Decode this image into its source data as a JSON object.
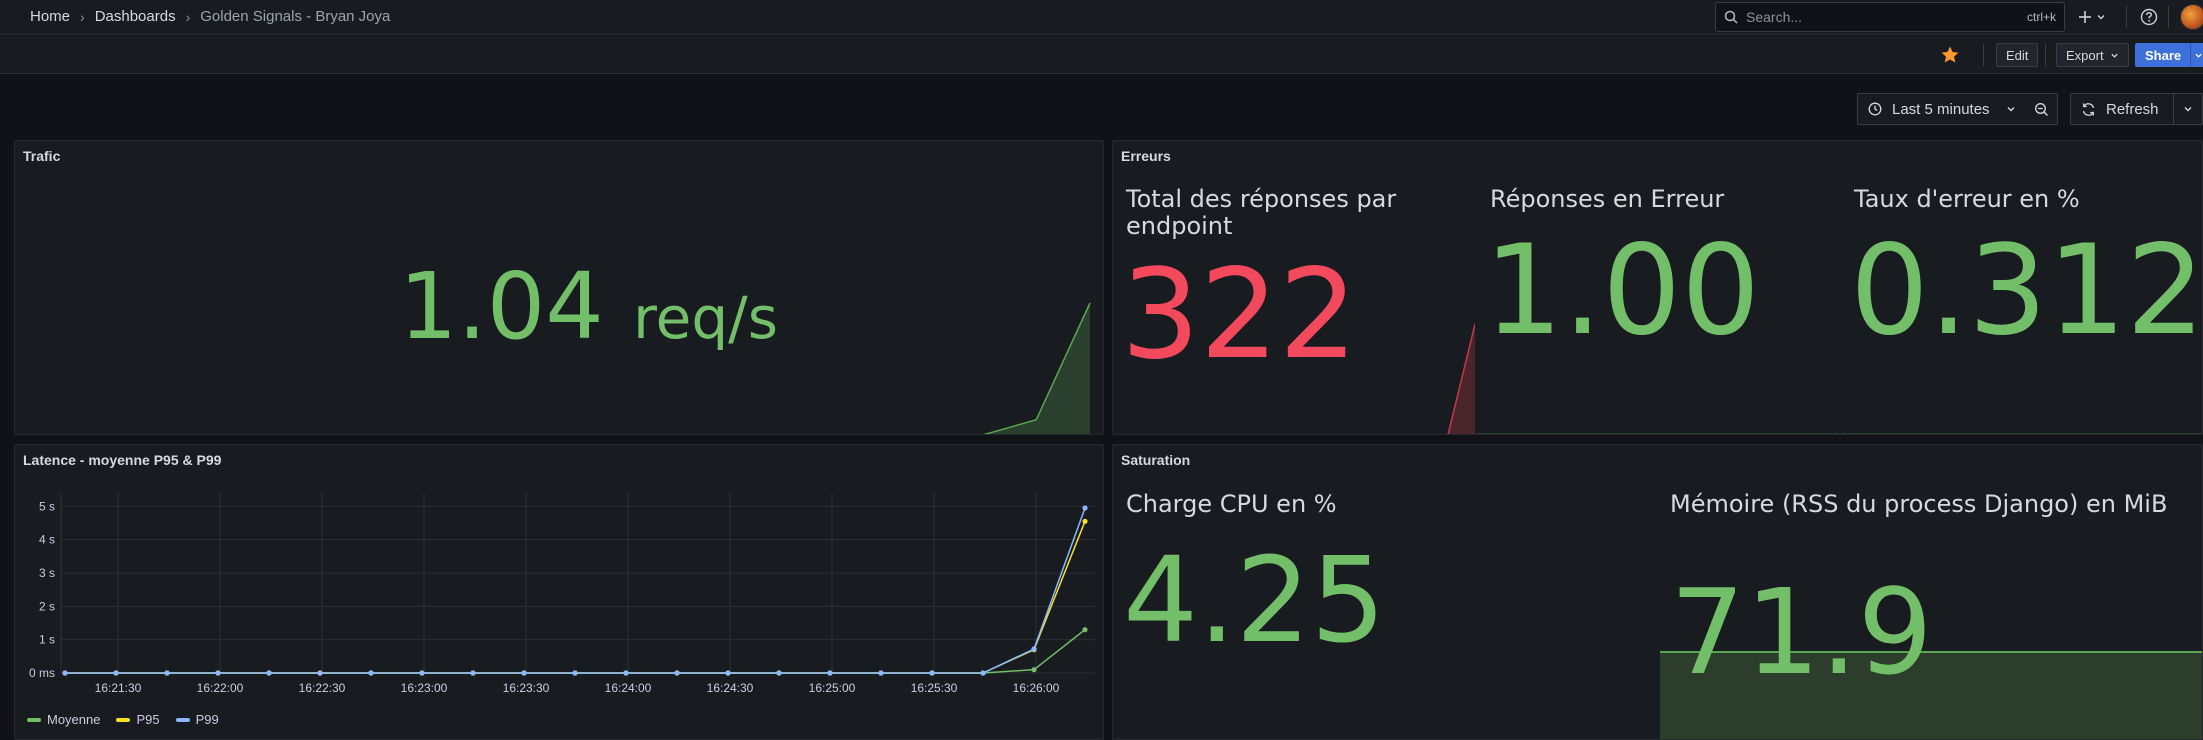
{
  "nav": {
    "breadcrumbs": [
      "Home",
      "Dashboards",
      "Golden Signals - Bryan Joya"
    ],
    "search_placeholder": "Search...",
    "search_shortcut": "ctrl+k",
    "plus_icon": "plus-icon",
    "help_icon": "help-icon"
  },
  "toolbar": {
    "edit_label": "Edit",
    "export_label": "Export",
    "share_label": "Share",
    "star_color": "#ff9830"
  },
  "time": {
    "range_label": "Last 5 minutes",
    "refresh_label": "Refresh"
  },
  "panels": {
    "trafic": {
      "title": "Trafic",
      "value": "1.04",
      "unit": "req/s",
      "sparkline": [
        0,
        0,
        0,
        0,
        0,
        0,
        0,
        0,
        0,
        0,
        0,
        0,
        0,
        0,
        0,
        0,
        0,
        0,
        0,
        0.12,
        1.04
      ]
    },
    "erreurs": {
      "title": "Erreurs",
      "stats": [
        {
          "title": "Total des réponses par endpoint",
          "value": "322",
          "color": "#f2495c",
          "sparkline": [
            300,
            300,
            300,
            300,
            300,
            300,
            300,
            300,
            300,
            300,
            300,
            302,
            322
          ]
        },
        {
          "title": "Réponses en Erreur",
          "value": "1.00",
          "color": "#73bf69",
          "sparkline": [
            1,
            1,
            1,
            1,
            1,
            1,
            1,
            1
          ]
        },
        {
          "title": "Taux d'erreur en %",
          "value": "0.312",
          "color": "#73bf69",
          "sparkline": [
            0.31,
            0.31,
            0.31,
            0.31,
            0.31,
            0.31
          ]
        }
      ]
    },
    "latence": {
      "title": "Latence - moyenne P95 & P99",
      "legend": [
        {
          "name": "Moyenne",
          "color": "#73bf69"
        },
        {
          "name": "P95",
          "color": "#fade2a"
        },
        {
          "name": "P99",
          "color": "#8ab8ff"
        }
      ]
    },
    "saturation": {
      "title": "Saturation",
      "stats": [
        {
          "title": "Charge CPU en %",
          "value": "4.25",
          "color": "#73bf69"
        },
        {
          "title": "Mémoire (RSS du process Django) en MiB",
          "value": "71.9",
          "color": "#73bf69"
        }
      ]
    }
  },
  "chart_data": {
    "type": "line",
    "title": "Latence - moyenne P95 & P99",
    "x_ticks": [
      "16:21:30",
      "16:22:00",
      "16:22:30",
      "16:23:00",
      "16:23:30",
      "16:24:00",
      "16:24:30",
      "16:25:00",
      "16:25:30",
      "16:26:00"
    ],
    "y_ticks": [
      "0 ms",
      "1 s",
      "2 s",
      "3 s",
      "4 s",
      "5 s"
    ],
    "ylim": [
      0,
      5.4
    ],
    "x": [
      "16:21:15",
      "16:21:30",
      "16:21:45",
      "16:22:00",
      "16:22:15",
      "16:22:30",
      "16:22:45",
      "16:23:00",
      "16:23:15",
      "16:23:30",
      "16:23:45",
      "16:24:00",
      "16:24:15",
      "16:24:30",
      "16:24:45",
      "16:25:00",
      "16:25:15",
      "16:25:30",
      "16:25:45",
      "16:26:00",
      "16:26:15"
    ],
    "series": [
      {
        "name": "Moyenne",
        "color": "#73bf69",
        "values": [
          0,
          0,
          0,
          0,
          0,
          0,
          0,
          0,
          0,
          0,
          0,
          0,
          0,
          0,
          0,
          0,
          0,
          0,
          0,
          0.1,
          1.3
        ]
      },
      {
        "name": "P95",
        "color": "#fade2a",
        "values": [
          0,
          0,
          0,
          0,
          0,
          0,
          0,
          0,
          0,
          0,
          0,
          0,
          0,
          0,
          0,
          0,
          0,
          0,
          0,
          0.7,
          4.55
        ]
      },
      {
        "name": "P99",
        "color": "#8ab8ff",
        "values": [
          0,
          0,
          0,
          0,
          0,
          0,
          0,
          0,
          0,
          0,
          0,
          0,
          0,
          0,
          0,
          0,
          0,
          0,
          0,
          0.72,
          4.95
        ]
      }
    ],
    "grid": true,
    "legend_position": "bottom-left"
  }
}
